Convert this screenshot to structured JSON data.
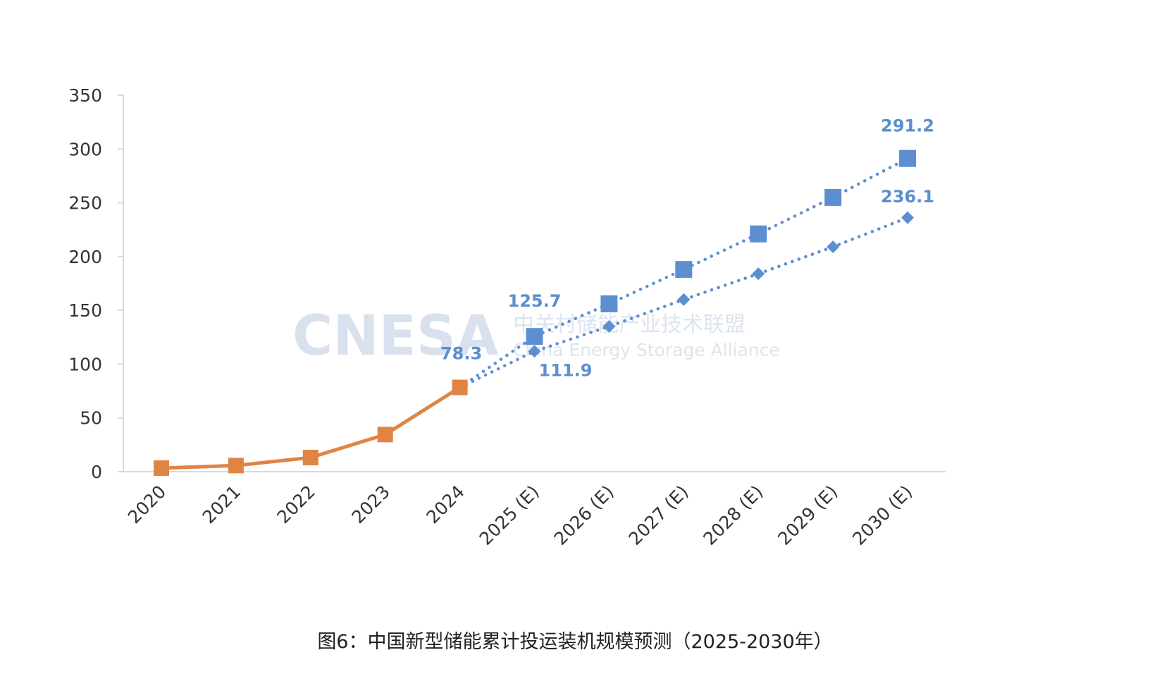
{
  "caption": "图6：中国新型储能累计投运装机规模预测（2025-2030年）",
  "watermark": {
    "logo": "CNESA",
    "cn": "中关村储能产业技术联盟",
    "en": "China Energy Storage Alliance"
  },
  "chart_data": {
    "type": "line",
    "title": "",
    "xlabel": "",
    "ylabel": "",
    "ylim": [
      0,
      350
    ],
    "yticks": [
      0,
      50,
      100,
      150,
      200,
      250,
      300,
      350
    ],
    "grid": false,
    "categories": [
      "2020",
      "2021",
      "2022",
      "2023",
      "2024",
      "2025 (E)",
      "2026 (E)",
      "2027 (E)",
      "2028 (E)",
      "2029 (E)",
      "2030 (E)"
    ],
    "series": [
      {
        "style": "solid",
        "marker": "square",
        "color": "#e08444",
        "values": [
          3.3,
          5.7,
          13.1,
          34.5,
          78.3,
          null,
          null,
          null,
          null,
          null,
          null
        ],
        "labels": {
          "4": "78.3"
        }
      },
      {
        "style": "dotted",
        "marker": "square",
        "color": "#5b8fd0",
        "values": [
          null,
          null,
          null,
          null,
          78.3,
          125.7,
          156,
          188,
          221,
          255,
          291.2
        ],
        "labels": {
          "5": "125.7",
          "10": "291.2"
        }
      },
      {
        "style": "dotted",
        "marker": "diamond",
        "color": "#5b8fd0",
        "values": [
          null,
          null,
          null,
          null,
          78.3,
          111.9,
          135,
          160,
          184,
          209,
          236.1
        ],
        "labels": {
          "5": "111.9",
          "10": "236.1"
        }
      }
    ]
  }
}
